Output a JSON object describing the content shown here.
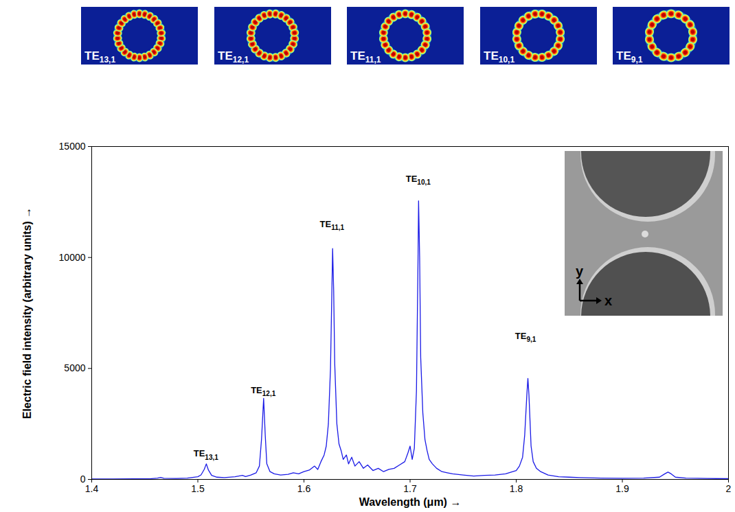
{
  "chart_data": {
    "type": "line",
    "xlabel": "Wavelength (μm)",
    "ylabel": "Electric field intensity (arbitrary units)",
    "color": "#1a1ae6",
    "xlim": [
      1.4,
      2
    ],
    "xticks": [
      1.4,
      1.5,
      1.6,
      1.7,
      1.8,
      1.9,
      2
    ],
    "ylim": [
      0,
      15000
    ],
    "yticks": [
      0,
      5000,
      10000,
      15000
    ],
    "grid": false,
    "x": [
      1.4,
      1.42,
      1.44,
      1.455,
      1.462,
      1.465,
      1.468,
      1.48,
      1.49,
      1.5,
      1.503,
      1.506,
      1.508,
      1.51,
      1.513,
      1.518,
      1.525,
      1.535,
      1.542,
      1.545,
      1.55,
      1.555,
      1.558,
      1.56,
      1.562,
      1.5635,
      1.565,
      1.568,
      1.572,
      1.578,
      1.585,
      1.59,
      1.595,
      1.6,
      1.605,
      1.61,
      1.613,
      1.616,
      1.619,
      1.621,
      1.623,
      1.625,
      1.6265,
      1.627,
      1.628,
      1.629,
      1.631,
      1.633,
      1.635,
      1.637,
      1.64,
      1.642,
      1.645,
      1.648,
      1.652,
      1.656,
      1.66,
      1.665,
      1.67,
      1.675,
      1.68,
      1.685,
      1.69,
      1.695,
      1.698,
      1.7,
      1.702,
      1.704,
      1.706,
      1.7075,
      1.708,
      1.709,
      1.71,
      1.712,
      1.714,
      1.716,
      1.718,
      1.721,
      1.725,
      1.73,
      1.735,
      1.74,
      1.75,
      1.76,
      1.77,
      1.78,
      1.79,
      1.8,
      1.803,
      1.806,
      1.808,
      1.81,
      1.811,
      1.812,
      1.814,
      1.816,
      1.819,
      1.823,
      1.83,
      1.84,
      1.85,
      1.86,
      1.88,
      1.9,
      1.92,
      1.935,
      1.94,
      1.943,
      1.946,
      1.95,
      1.96,
      1.98,
      2.0
    ],
    "values": [
      20,
      20,
      25,
      30,
      60,
      90,
      50,
      40,
      60,
      120,
      200,
      450,
      700,
      420,
      180,
      100,
      80,
      120,
      180,
      130,
      200,
      300,
      600,
      1800,
      3650,
      2000,
      700,
      350,
      250,
      200,
      230,
      300,
      250,
      350,
      420,
      600,
      450,
      800,
      1100,
      1500,
      2500,
      5000,
      9000,
      10400,
      8500,
      5200,
      2500,
      1600,
      1300,
      900,
      1100,
      700,
      1000,
      600,
      800,
      500,
      650,
      400,
      500,
      350,
      450,
      500,
      650,
      800,
      1200,
      1500,
      900,
      1400,
      4000,
      10000,
      12550,
      10000,
      5500,
      3000,
      1800,
      1300,
      900,
      700,
      500,
      350,
      300,
      250,
      200,
      150,
      180,
      200,
      250,
      400,
      600,
      1000,
      2000,
      3800,
      4550,
      3800,
      1500,
      800,
      500,
      350,
      200,
      120,
      100,
      80,
      60,
      50,
      60,
      100,
      250,
      330,
      250,
      100,
      60,
      40,
      30
    ],
    "annotations": [
      {
        "text": "TE",
        "sub": "13,1",
        "x": 1.508,
        "y": 1150
      },
      {
        "text": "TE",
        "sub": "12,1",
        "x": 1.562,
        "y": 4000
      },
      {
        "text": "TE",
        "sub": "11,1",
        "x": 1.627,
        "y": 11500
      },
      {
        "text": "TE",
        "sub": "10,1",
        "x": 1.708,
        "y": 13550
      },
      {
        "text": "TE",
        "sub": "9,1",
        "x": 1.811,
        "y": 6450
      }
    ],
    "mode_images": [
      {
        "text": "TE",
        "sub": "13,1",
        "lobes": 26
      },
      {
        "text": "TE",
        "sub": "12,1",
        "lobes": 24
      },
      {
        "text": "TE",
        "sub": "11,1",
        "lobes": 22
      },
      {
        "text": "TE",
        "sub": "10,1",
        "lobes": 20
      },
      {
        "text": "TE",
        "sub": "9,1",
        "lobes": 18
      }
    ],
    "inset_axes": {
      "x": "x",
      "y": "y"
    }
  }
}
